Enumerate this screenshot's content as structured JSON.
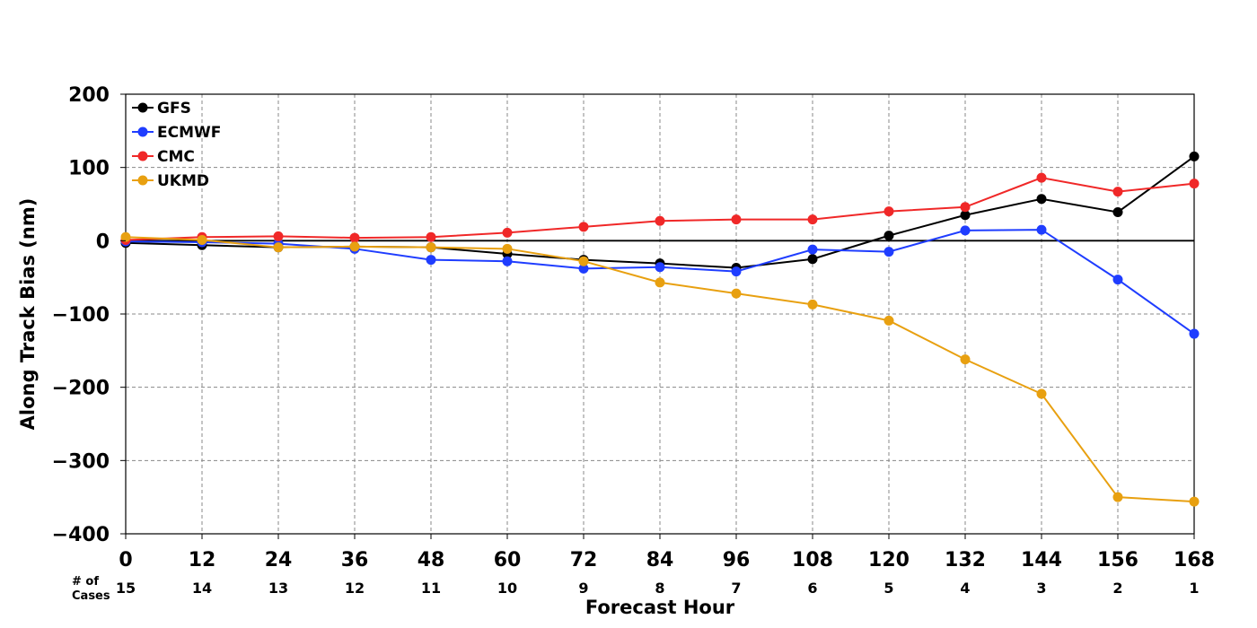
{
  "chart_data": {
    "type": "line",
    "xlabel": "Forecast Hour",
    "ylabel": "Along Track Bias (nm)",
    "x": [
      0,
      12,
      24,
      36,
      48,
      60,
      72,
      84,
      96,
      108,
      120,
      132,
      144,
      156,
      168
    ],
    "xlim": [
      0,
      168
    ],
    "ylim": [
      -400,
      200
    ],
    "yticks": [
      200,
      100,
      0,
      -100,
      -200,
      -300,
      -400
    ],
    "ytick_labels": [
      "200",
      "100",
      "0",
      "−100",
      "−200",
      "−300",
      "−400"
    ],
    "grid": true,
    "legend_position": "top-left",
    "cases_label_line1": "# of",
    "cases_label_line2": "Cases",
    "cases": [
      15,
      14,
      13,
      12,
      11,
      10,
      9,
      8,
      7,
      6,
      5,
      4,
      3,
      2,
      1
    ],
    "series": [
      {
        "name": "GFS",
        "color": "#000000",
        "values": [
          -3,
          -6,
          -9,
          -8,
          -9,
          -18,
          -26,
          -31,
          -37,
          -25,
          7,
          35,
          57,
          39,
          115
        ]
      },
      {
        "name": "ECMWF",
        "color": "#1f3dff",
        "values": [
          -1,
          -2,
          -4,
          -11,
          -26,
          -28,
          -38,
          -36,
          -42,
          -12,
          -15,
          14,
          15,
          -53,
          -127
        ]
      },
      {
        "name": "CMC",
        "color": "#f02828",
        "values": [
          1,
          5,
          6,
          4,
          5,
          11,
          19,
          27,
          29,
          29,
          40,
          46,
          86,
          67,
          78
        ]
      },
      {
        "name": "UKMD",
        "color": "#e8a010",
        "values": [
          5,
          1,
          -9,
          -8,
          -9,
          -11,
          -28,
          -57,
          -72,
          -87,
          -109,
          -162,
          -209,
          -350,
          -356
        ]
      }
    ]
  }
}
